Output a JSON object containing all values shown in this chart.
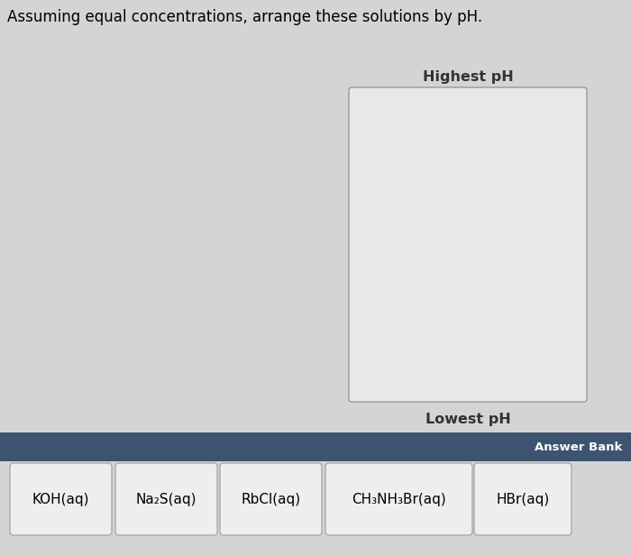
{
  "title": "Assuming equal concentrations, arrange these solutions by pH.",
  "highest_ph_label": "Highest pH",
  "lowest_ph_label": "Lowest pH",
  "answer_bank_label": "Answer Bank",
  "answer_bank_bg": "#3d5470",
  "answer_bank_text_color": "#ffffff",
  "items": [
    "KOH(aq)",
    "Na₂S(aq)",
    "RbCl(aq)",
    "CH₃NH₃Br(aq)",
    "HBr(aq)"
  ],
  "background_color": "#d4d4d4",
  "box_bg_color": "#e8e8e8",
  "box_border_color": "#999999",
  "item_box_color": "#eeeeee",
  "item_box_border_color": "#aaaaaa",
  "title_fontsize": 12,
  "label_fontsize": 11.5,
  "item_fontsize": 11,
  "answer_bank_fontsize": 9.5,
  "fig_width": 7.0,
  "fig_height": 6.16,
  "dpi": 100
}
